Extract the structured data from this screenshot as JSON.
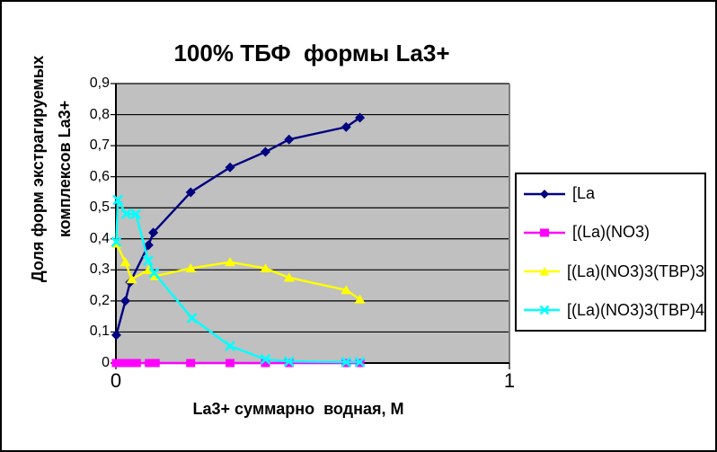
{
  "window": {
    "background": "#ffffff",
    "border_color": "#000000"
  },
  "chart_data": {
    "type": "line",
    "title": "100% ТБФ  формы La3+",
    "xlabel": "La3+ суммарно  водная, М",
    "ylabel_lines": [
      "Доля форм экстрагируемых",
      "комплексов La3+"
    ],
    "plot_bg": "#c0c0c0",
    "grid": "horizontal",
    "xlim": [
      0,
      1
    ],
    "ylim": [
      0,
      0.9
    ],
    "legend_position": "right",
    "x_ticks": [
      {
        "value": 0,
        "label": "0"
      },
      {
        "value": 1,
        "label": "1"
      }
    ],
    "y_ticks": [
      {
        "value": 0.0,
        "label": "0"
      },
      {
        "value": 0.1,
        "label": "0,1"
      },
      {
        "value": 0.2,
        "label": "0,2"
      },
      {
        "value": 0.3,
        "label": "0,3"
      },
      {
        "value": 0.4,
        "label": "0,4"
      },
      {
        "value": 0.5,
        "label": "0,5"
      },
      {
        "value": 0.6,
        "label": "0,6"
      },
      {
        "value": 0.7,
        "label": "0,7"
      },
      {
        "value": 0.8,
        "label": "0,8"
      },
      {
        "value": 0.9,
        "label": "0,9"
      }
    ],
    "series": [
      {
        "name": "[La",
        "color": "#000080",
        "marker": "diamond",
        "x": [
          0.001,
          0.024,
          0.036,
          0.083,
          0.095,
          0.19,
          0.29,
          0.38,
          0.44,
          0.585,
          0.62
        ],
        "y": [
          0.09,
          0.2,
          0.26,
          0.38,
          0.42,
          0.55,
          0.63,
          0.68,
          0.72,
          0.76,
          0.79
        ]
      },
      {
        "name": "[(La)(NO3)",
        "color": "#ff00ff",
        "marker": "square",
        "x": [
          0.001,
          0.012,
          0.025,
          0.04,
          0.052,
          0.085,
          0.1,
          0.19,
          0.29,
          0.38,
          0.44,
          0.585,
          0.62
        ],
        "y": [
          0,
          0,
          0,
          0,
          0,
          0,
          0,
          0,
          0,
          0,
          0,
          0,
          0
        ]
      },
      {
        "name": "[(La)(NO3)3(TBP)3",
        "color": "#ffff00",
        "marker": "triangle",
        "x": [
          0.001,
          0.024,
          0.04,
          0.083,
          0.1,
          0.19,
          0.29,
          0.38,
          0.44,
          0.585,
          0.62
        ],
        "y": [
          0.385,
          0.325,
          0.27,
          0.3,
          0.28,
          0.305,
          0.325,
          0.305,
          0.275,
          0.235,
          0.205
        ]
      },
      {
        "name": "[(La)(NO3)3(TBP)4",
        "color": "#00ffff",
        "marker": "x",
        "x": [
          0.001,
          0.005,
          0.026,
          0.051,
          0.082,
          0.097,
          0.193,
          0.29,
          0.38,
          0.44,
          0.585,
          0.62
        ],
        "y": [
          0.39,
          0.525,
          0.48,
          0.48,
          0.33,
          0.29,
          0.145,
          0.055,
          0.012,
          0.005,
          0.003,
          0.003
        ]
      }
    ]
  }
}
